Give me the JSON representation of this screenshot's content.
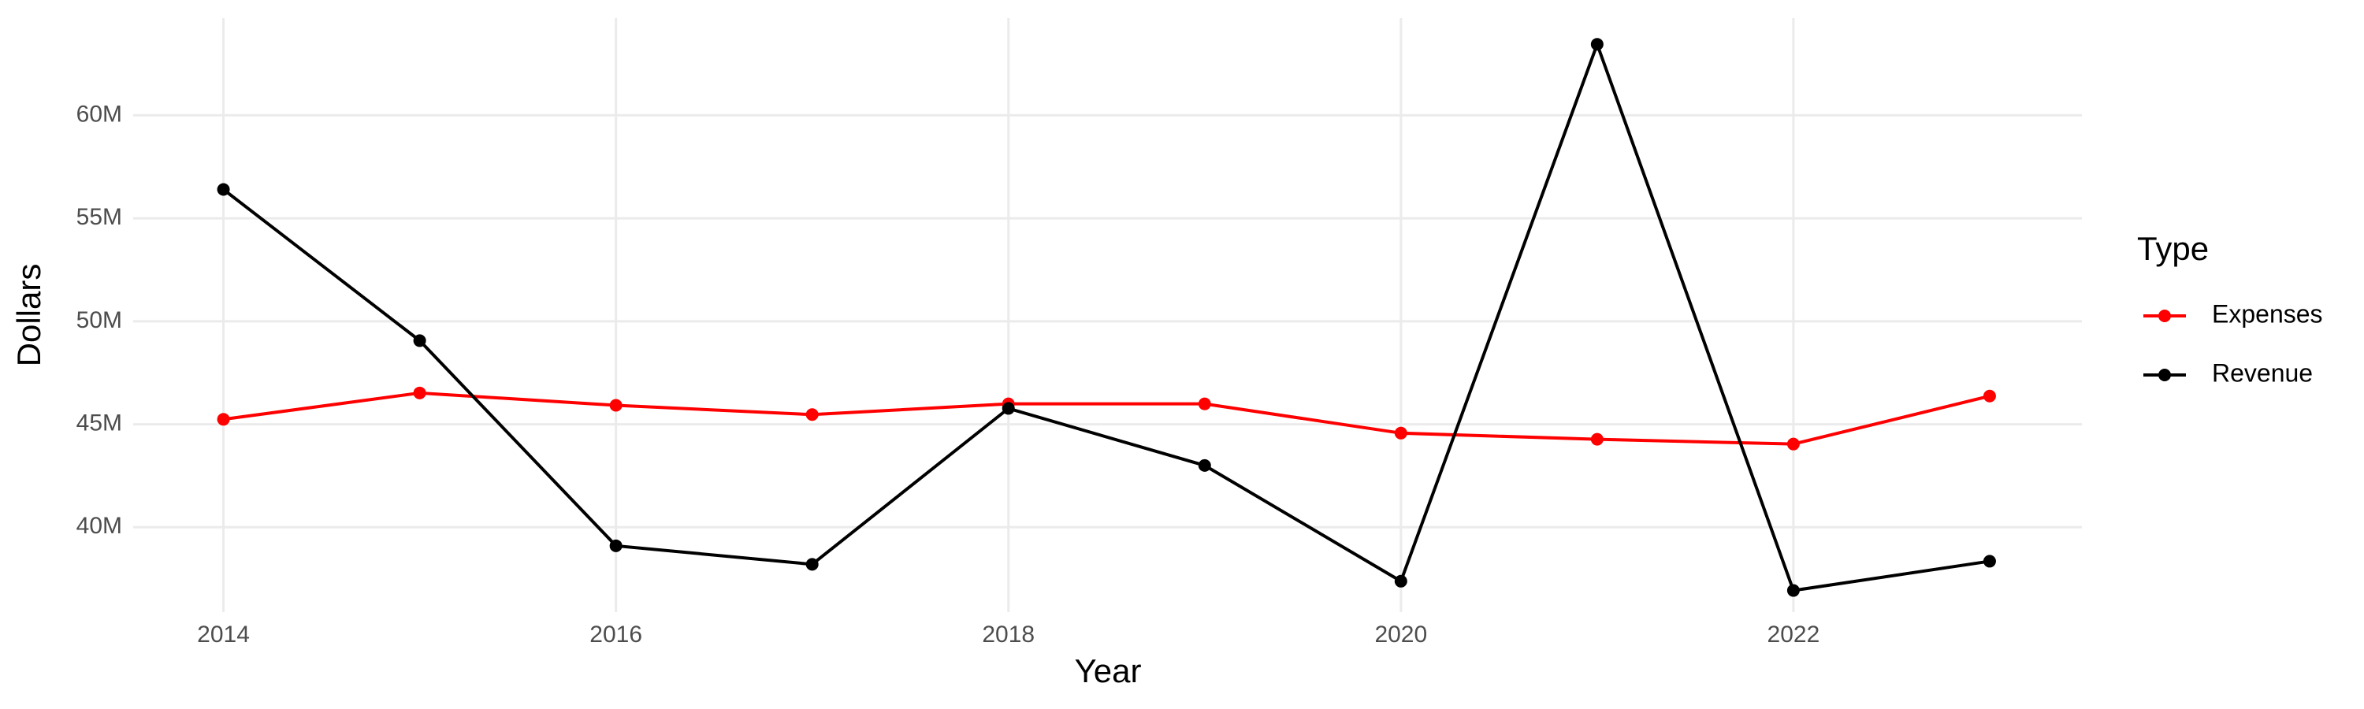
{
  "chart_data": {
    "type": "line",
    "x_label": "Year",
    "y_label": "Dollars",
    "legend_title": "Type",
    "x": [
      2014,
      2015,
      2016,
      2017,
      2018,
      2019,
      2020,
      2021,
      2022,
      2023
    ],
    "series": [
      {
        "name": "Expenses",
        "color": "#ff0000",
        "values": [
          45240000,
          46520000,
          45920000,
          45470000,
          45990000,
          45990000,
          44570000,
          44270000,
          44040000,
          46370000
        ]
      },
      {
        "name": "Revenue",
        "color": "#000000",
        "values": [
          56400000,
          49060000,
          39100000,
          38200000,
          45770000,
          43000000,
          37380000,
          63450000,
          36930000,
          38350000
        ]
      }
    ],
    "xlim": [
      2013.54,
      2023.47
    ],
    "ylim": [
      35880000,
      64720000
    ],
    "xticks": [
      2014,
      2016,
      2018,
      2020,
      2022
    ],
    "yticks": [
      {
        "value": 40000000,
        "label": "40M"
      },
      {
        "value": 45000000,
        "label": "45M"
      },
      {
        "value": 50000000,
        "label": "50M"
      },
      {
        "value": 55000000,
        "label": "55M"
      },
      {
        "value": 60000000,
        "label": "60M"
      }
    ],
    "grid": true,
    "legend_position": "right"
  }
}
